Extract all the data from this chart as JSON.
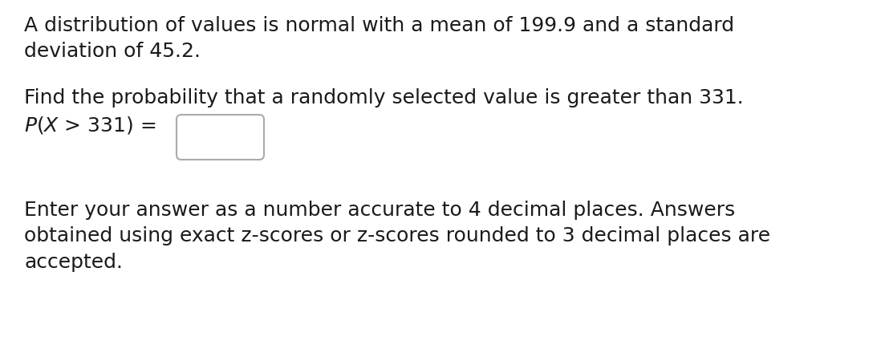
{
  "background_color": "#ffffff",
  "line1": "A distribution of values is normal with a mean of 199.9 and a standard",
  "line2": "deviation of 45.2.",
  "line3": "Find the probability that a randomly selected value is greater than 331.",
  "line4": "P(X > 331) =",
  "line5": "Enter your answer as a number accurate to 4 decimal places. Answers",
  "line6": "obtained using exact z-scores or z-scores rounded to 3 decimal places are",
  "line7": "accepted.",
  "font_size_main": 18,
  "text_color": "#1a1a1a",
  "box_color": "#aaaaaa",
  "box_fill": "#ffffff"
}
